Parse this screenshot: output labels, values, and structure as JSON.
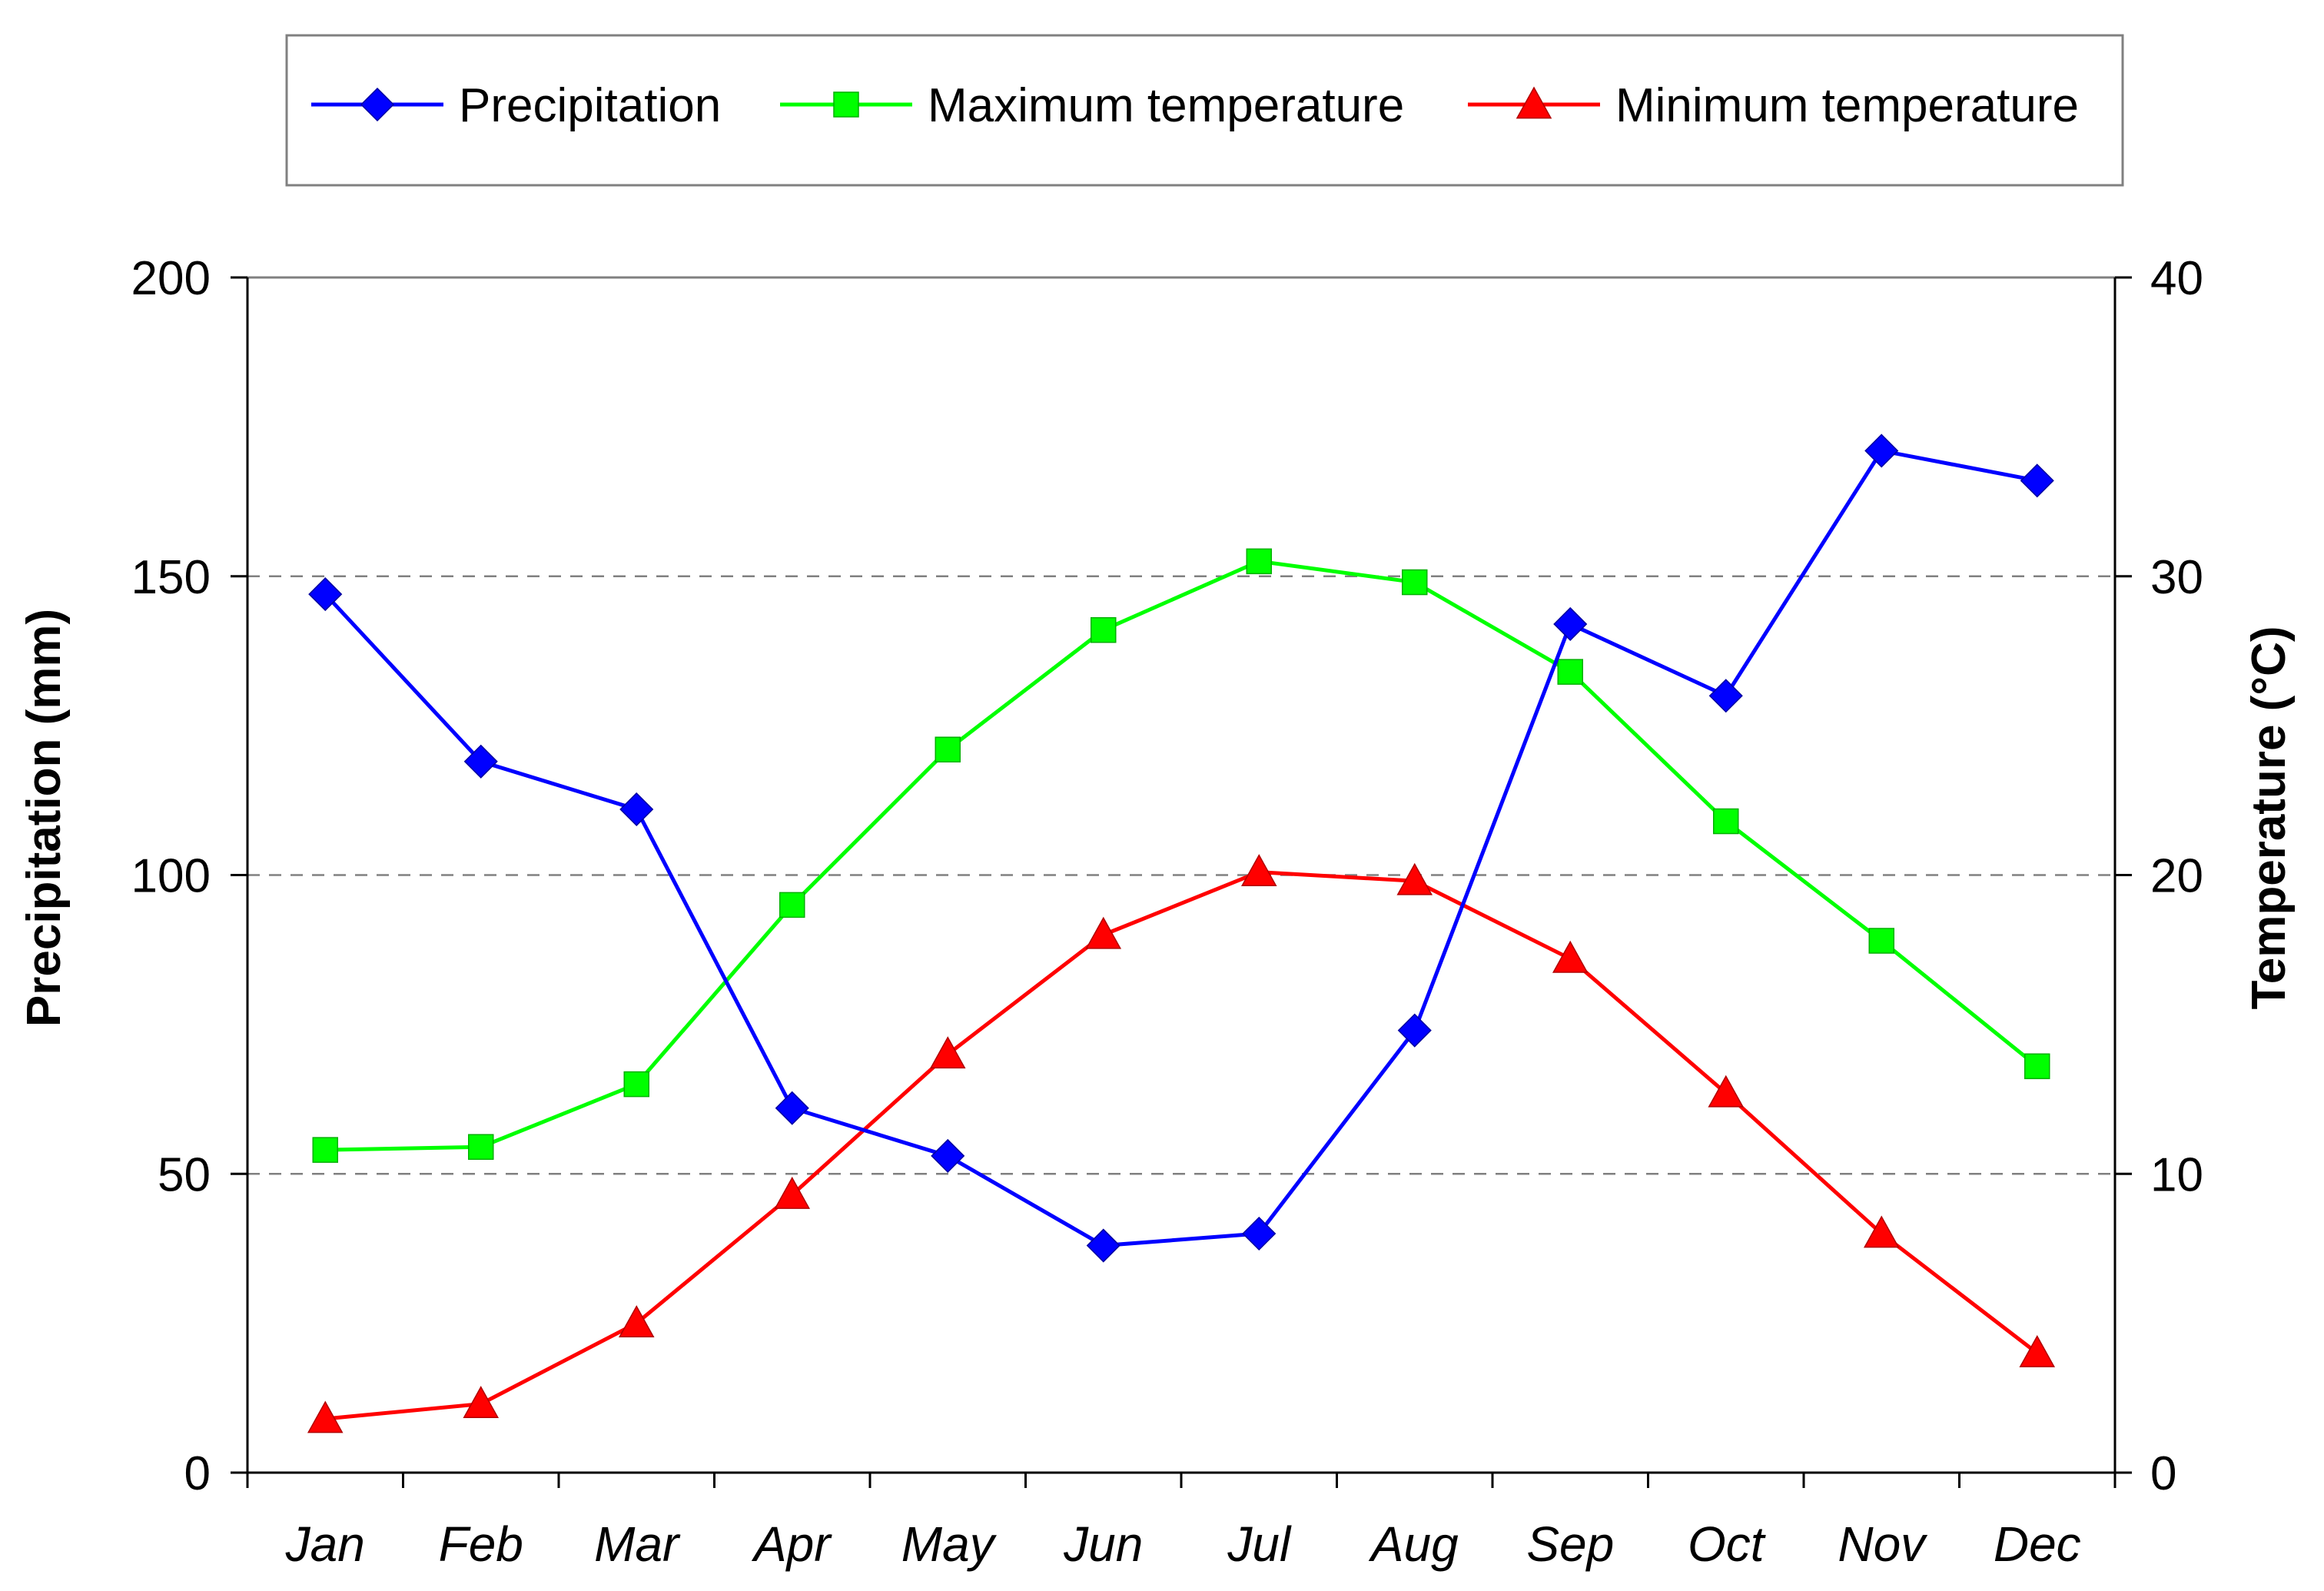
{
  "chart_data": {
    "type": "line",
    "title": "",
    "categories": [
      "Jan",
      "Feb",
      "Mar",
      "Apr",
      "May",
      "Jun",
      "Jul",
      "Aug",
      "Sep",
      "Oct",
      "Nov",
      "Dec"
    ],
    "xlabel": "",
    "ylabel": "Precipitation (mm)",
    "ylim": [
      0,
      200
    ],
    "yticks": [
      "0",
      "50",
      "100",
      "150",
      "200"
    ],
    "y2label": "Temperature (°C)",
    "y2lim": [
      0,
      40
    ],
    "y2ticks": [
      "0",
      "10",
      "20",
      "30",
      "40"
    ],
    "grid": "horizontal dashed",
    "legend_position": "top",
    "series": [
      {
        "name": "Precipitation",
        "axis": "left",
        "color": "#0000ff",
        "marker": "diamond",
        "values": [
          147,
          119,
          111,
          61,
          53,
          38,
          40,
          74,
          142,
          130,
          171,
          166
        ]
      },
      {
        "name": "Maximum temperature",
        "axis": "right",
        "color": "#00ff00",
        "marker": "square",
        "values": [
          10.8,
          10.9,
          13.0,
          19.0,
          24.2,
          28.2,
          30.5,
          29.8,
          26.8,
          21.8,
          17.8,
          13.6
        ]
      },
      {
        "name": "Minimum temperature",
        "axis": "right",
        "color": "#ff0000",
        "marker": "triangle",
        "values": [
          1.8,
          2.3,
          5.0,
          9.3,
          14.0,
          18.0,
          20.1,
          19.8,
          17.2,
          12.7,
          8.0,
          4.0
        ]
      }
    ]
  }
}
